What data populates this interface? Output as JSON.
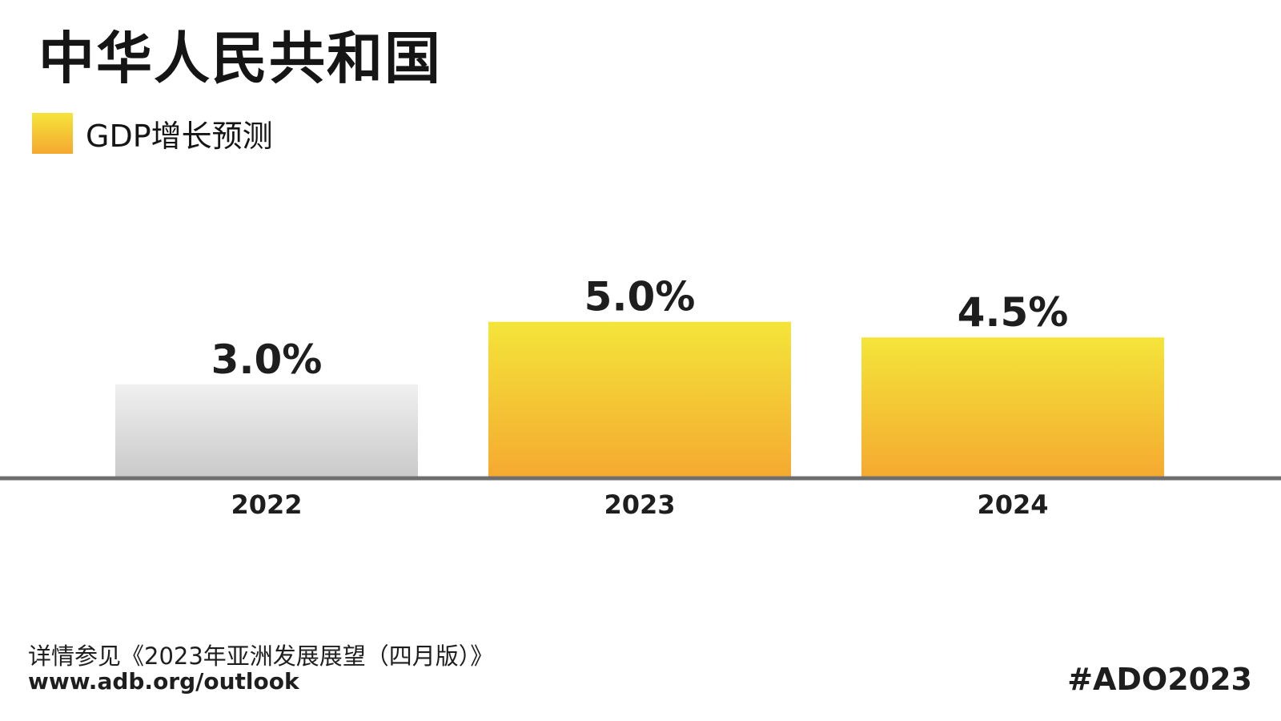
{
  "title": "中华人民共和国",
  "legend": {
    "label": "GDP增长预测"
  },
  "chart_data": {
    "type": "bar",
    "categories": [
      "2022",
      "2023",
      "2024"
    ],
    "values": [
      3.0,
      5.0,
      4.5
    ],
    "value_labels": [
      "3.0%",
      "5.0%",
      "4.5%"
    ],
    "bar_styles": [
      "actual",
      "forecast",
      "forecast"
    ],
    "series": [
      {
        "name": "GDP增长预测",
        "values": [
          3.0,
          5.0,
          4.5
        ]
      }
    ],
    "title": "中华人民共和国",
    "xlabel": "",
    "ylabel": "",
    "ylim": [
      0,
      6.4
    ],
    "grid": false,
    "legend_position": "top-left"
  },
  "colors": {
    "forecast_top": "#f4e53a",
    "forecast_bottom": "#f5a930",
    "actual_top": "#f0f0f0",
    "actual_bottom": "#c9c9c9",
    "baseline": "#6e6e6e",
    "text": "#1e1e1e"
  },
  "footer": {
    "note": "详情参见《2023年亚洲发展展望（四月版）》",
    "url": "www.adb.org/outlook",
    "hashtag": "#ADO2023"
  }
}
